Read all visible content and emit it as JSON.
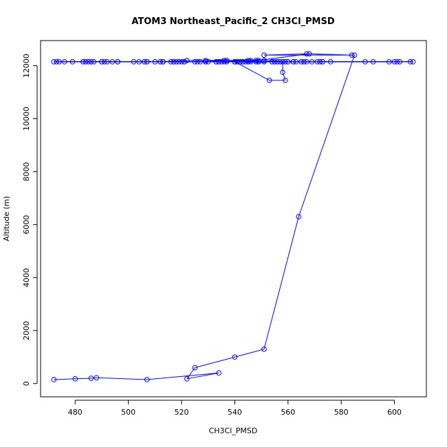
{
  "chart_data": {
    "type": "scatter",
    "title": "ATOM3 Northeast_Pacific_2 CH3Cl_PMSD",
    "xlabel": "CH3Cl_PMSD",
    "ylabel": "Altitude (m)",
    "xlim": [
      467,
      612
    ],
    "ylim": [
      -500,
      12950
    ],
    "xticks": [
      480,
      500,
      520,
      540,
      560,
      580,
      600
    ],
    "yticks": [
      0,
      2000,
      4000,
      6000,
      8000,
      10000,
      12000
    ],
    "grid": false,
    "legend": "none",
    "color": "#0000ff",
    "series": [
      {
        "mode": "lines+markers",
        "x": [
          472,
          480,
          486,
          488,
          507,
          534,
          522,
          525,
          540,
          551,
          564,
          585,
          551,
          567,
          584,
          568,
          545,
          558,
          558,
          559,
          553,
          540,
          518,
          513,
          513,
          534,
          548,
          549,
          549,
          536,
          522,
          512,
          507,
          506,
          529,
          537,
          529,
          546,
          545,
          551,
          559,
          598,
          602,
          592,
          543,
          567,
          569,
          573,
          600,
          601,
          589,
          572,
          562,
          551,
          530,
          520,
          507,
          486,
          473,
          484,
          472,
          492,
          502,
          487,
          517,
          516,
          507,
          519,
          527,
          534,
          540,
          548,
          555,
          560,
          565,
          572,
          560,
          563,
          558,
          548,
          551,
          556,
          558,
          562,
          557,
          549,
          546,
          540,
          525,
          517,
          512,
          513,
          535,
          541,
          544,
          542,
          545,
          549,
          554,
          537,
          533,
          521,
          513,
          506,
          496,
          494,
          474,
          479,
          483,
          496,
          484,
          476,
          483,
          490,
          491,
          486,
          485,
          490,
          504,
          521,
          543,
          565,
          576,
          606,
          521,
          554,
          607,
          510,
          545,
          555,
          513,
          533,
          540,
          541,
          543,
          536,
          526,
          529,
          540,
          540,
          556,
          542,
          573,
          571,
          566,
          566
        ],
        "y": [
          150,
          180,
          200,
          220,
          150,
          400,
          180,
          600,
          1000,
          1300,
          6300,
          12400,
          12400,
          12450,
          12400,
          12450,
          12150,
          12150,
          11750,
          11450,
          11450,
          12150,
          12150,
          12150,
          12150,
          12150,
          12200,
          12150,
          12200,
          12200,
          12200,
          12150,
          12150,
          12150,
          12150,
          12200,
          12200,
          12200,
          12200,
          12200,
          12150,
          12150,
          12150,
          12150,
          12150,
          12150,
          12150,
          12150,
          12150,
          12150,
          12150,
          12150,
          12150,
          12150,
          12150,
          12150,
          12150,
          12150,
          12150,
          12150,
          12150,
          12150,
          12150,
          12150,
          12150,
          12150,
          12150,
          12150,
          12150,
          12150,
          12150,
          12150,
          12150,
          12150,
          12150,
          12150,
          12150,
          12150,
          12150,
          12150,
          12150,
          12150,
          12150,
          12150,
          12150,
          12150,
          12150,
          12150,
          12150,
          12150,
          12150,
          12150,
          12150,
          12150,
          12150,
          12150,
          12150,
          12150,
          12150,
          12150,
          12150,
          12150,
          12150,
          12150,
          12150,
          12150,
          12150,
          12150,
          12150,
          12150,
          12150,
          12150,
          12150,
          12150,
          12150,
          12150,
          12150,
          12150,
          12150,
          12150,
          12150,
          12150,
          12150,
          12150,
          12150,
          12150,
          12150,
          12150,
          12150,
          12150,
          12150,
          12150,
          12150,
          12150,
          12150,
          12150,
          12150,
          12150,
          12150,
          12150,
          12150,
          12150,
          12150,
          12150,
          12150,
          12150
        ]
      }
    ]
  }
}
